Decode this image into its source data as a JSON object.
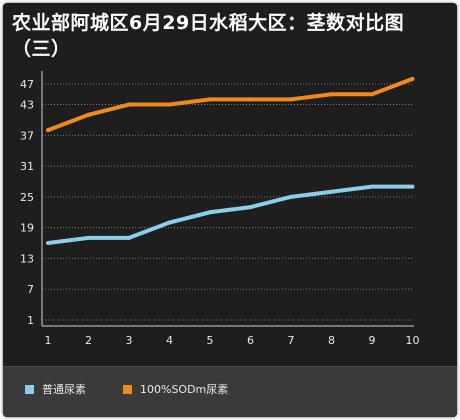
{
  "chart_data": {
    "type": "line",
    "title": "农业部阿城区6月29日水稻大区：茎数对比图（三）",
    "categories": [
      "1",
      "2",
      "3",
      "4",
      "5",
      "6",
      "7",
      "8",
      "9",
      "10"
    ],
    "y_ticks": [
      1,
      7,
      13,
      19,
      25,
      31,
      37,
      43,
      47
    ],
    "ylim": [
      1,
      47
    ],
    "grid": true,
    "legend_position": "bottom",
    "series": [
      {
        "name": "普通尿素",
        "color": "#8ccde8",
        "values": [
          16,
          17,
          17,
          20,
          22,
          23,
          25,
          26,
          27,
          27
        ]
      },
      {
        "name": "100%SODm尿素",
        "color": "#f08a1c",
        "values": [
          38,
          41,
          43,
          43,
          44,
          44,
          44,
          45,
          45,
          48
        ]
      }
    ]
  }
}
